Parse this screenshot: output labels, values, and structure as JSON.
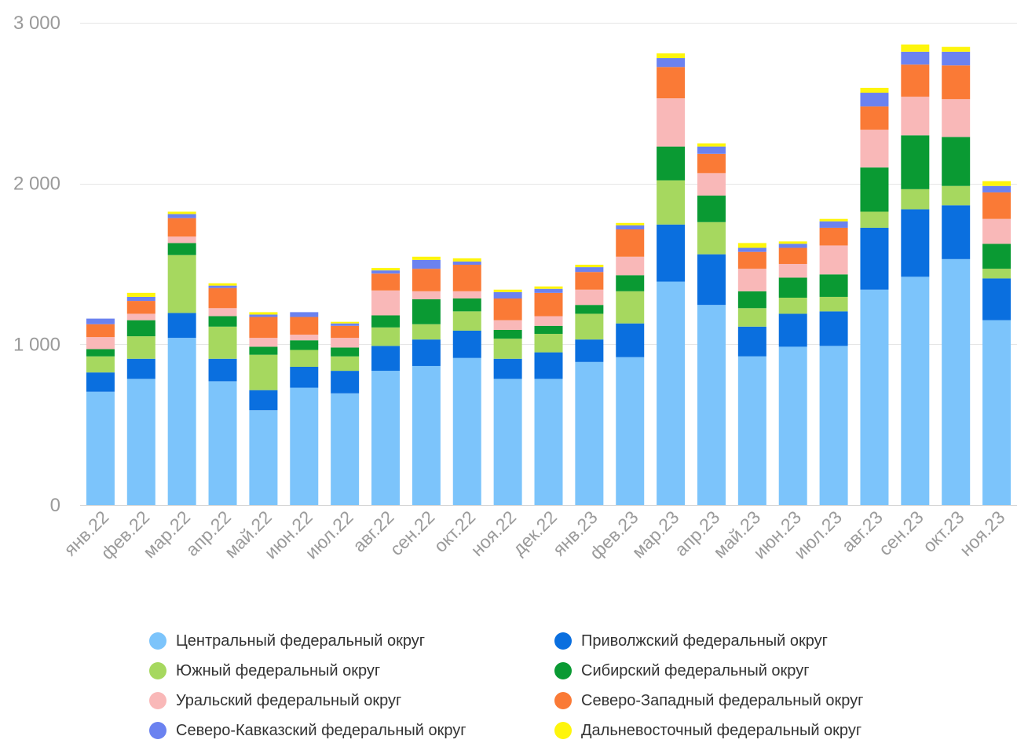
{
  "chart_data": {
    "type": "bar",
    "stacked": true,
    "categories": [
      "янв.22",
      "фев.22",
      "мар.22",
      "апр.22",
      "май.22",
      "июн.22",
      "июл.22",
      "авг.22",
      "сен.22",
      "окт.22",
      "ноя.22",
      "дек.22",
      "янв.23",
      "фев.23",
      "мар.23",
      "апр.23",
      "май.23",
      "июн.23",
      "июл.23",
      "авг.23",
      "сен.23",
      "окт.23",
      "ноя.23"
    ],
    "ylim": [
      0,
      3000
    ],
    "yticks": [
      0,
      1000,
      2000,
      3000
    ],
    "ytick_labels": [
      "0",
      "1 000",
      "2 000",
      "3 000"
    ],
    "grid": true,
    "legend_position": "bottom",
    "series": [
      {
        "name": "Центральный федеральный округ",
        "color": "#7cc4fb",
        "values": [
          705,
          785,
          1040,
          770,
          590,
          730,
          695,
          835,
          865,
          915,
          785,
          785,
          890,
          920,
          1390,
          1245,
          925,
          985,
          990,
          1340,
          1420,
          1530,
          1150
        ]
      },
      {
        "name": "Приволжский федеральный округ",
        "color": "#0a6fdf",
        "values": [
          120,
          125,
          155,
          140,
          125,
          130,
          140,
          155,
          165,
          170,
          125,
          165,
          140,
          210,
          355,
          315,
          185,
          205,
          215,
          385,
          420,
          335,
          260
        ]
      },
      {
        "name": "Южный федеральный округ",
        "color": "#a6d85f",
        "values": [
          100,
          140,
          360,
          200,
          220,
          105,
          90,
          115,
          95,
          120,
          125,
          115,
          160,
          200,
          275,
          200,
          115,
          100,
          90,
          100,
          125,
          120,
          60
        ]
      },
      {
        "name": "Сибирский федеральный округ",
        "color": "#0a9a33",
        "values": [
          45,
          100,
          75,
          65,
          50,
          60,
          55,
          75,
          155,
          80,
          55,
          50,
          55,
          100,
          210,
          165,
          105,
          125,
          140,
          275,
          335,
          305,
          155
        ]
      },
      {
        "name": "Уральский федеральный округ",
        "color": "#f9b8b8",
        "values": [
          75,
          40,
          40,
          50,
          55,
          35,
          60,
          155,
          50,
          45,
          60,
          60,
          95,
          115,
          300,
          140,
          140,
          85,
          180,
          235,
          240,
          235,
          155
        ]
      },
      {
        "name": "Северо-Западный федеральный округ",
        "color": "#fa7a36",
        "values": [
          80,
          80,
          115,
          125,
          130,
          110,
          75,
          105,
          140,
          165,
          135,
          145,
          110,
          170,
          195,
          120,
          105,
          100,
          110,
          145,
          200,
          210,
          165
        ]
      },
      {
        "name": "Северо-Кавказский федеральный округ",
        "color": "#6b82f0",
        "values": [
          35,
          25,
          25,
          15,
          15,
          30,
          15,
          20,
          55,
          20,
          40,
          25,
          30,
          25,
          55,
          45,
          25,
          25,
          40,
          85,
          80,
          85,
          40
        ]
      },
      {
        "name": "Дальневосточный федеральный округ",
        "color": "#fef50c",
        "values": [
          0,
          25,
          15,
          15,
          15,
          0,
          10,
          15,
          20,
          20,
          15,
          15,
          15,
          15,
          30,
          20,
          30,
          15,
          15,
          30,
          45,
          30,
          30
        ]
      }
    ]
  }
}
